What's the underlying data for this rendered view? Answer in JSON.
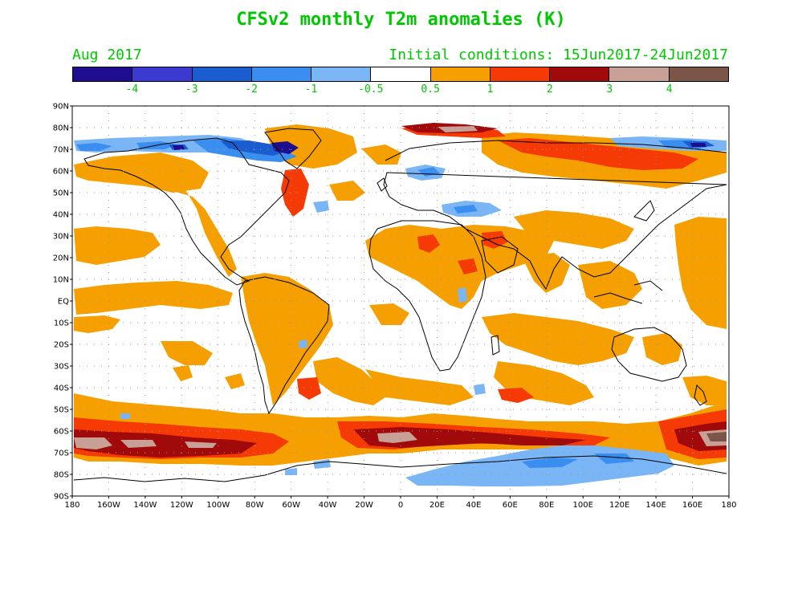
{
  "title": "CFSv2 monthly T2m anomalies (K)",
  "valid_month": "Aug 2017",
  "initial_conditions": "Initial conditions: 15Jun2017-24Jun2017",
  "colorbar": {
    "colors": [
      "#1f0d8f",
      "#3a3ad1",
      "#1a5dd1",
      "#3a8ef0",
      "#7ab6f5",
      "#ffffff",
      "#f5a000",
      "#f53a05",
      "#a00a0a",
      "#c8a095",
      "#7a5548"
    ],
    "labels": [
      "-4",
      "-3",
      "-2",
      "-1",
      "-0.5",
      "0.5",
      "1",
      "2",
      "3",
      "4"
    ]
  },
  "axes": {
    "lat_labels": [
      "90N",
      "80N",
      "70N",
      "60N",
      "50N",
      "40N",
      "30N",
      "20N",
      "10N",
      "EQ",
      "10S",
      "20S",
      "30S",
      "40S",
      "50S",
      "60S",
      "70S",
      "80S",
      "90S"
    ],
    "lon_labels": [
      "180",
      "160W",
      "140W",
      "120W",
      "100W",
      "80W",
      "60W",
      "40W",
      "20W",
      "0",
      "20E",
      "40E",
      "60E",
      "80E",
      "100E",
      "120E",
      "140E",
      "160E",
      "180"
    ]
  },
  "colors": {
    "text_green": "#00c800",
    "grid": "#999999",
    "coast": "#000000"
  }
}
